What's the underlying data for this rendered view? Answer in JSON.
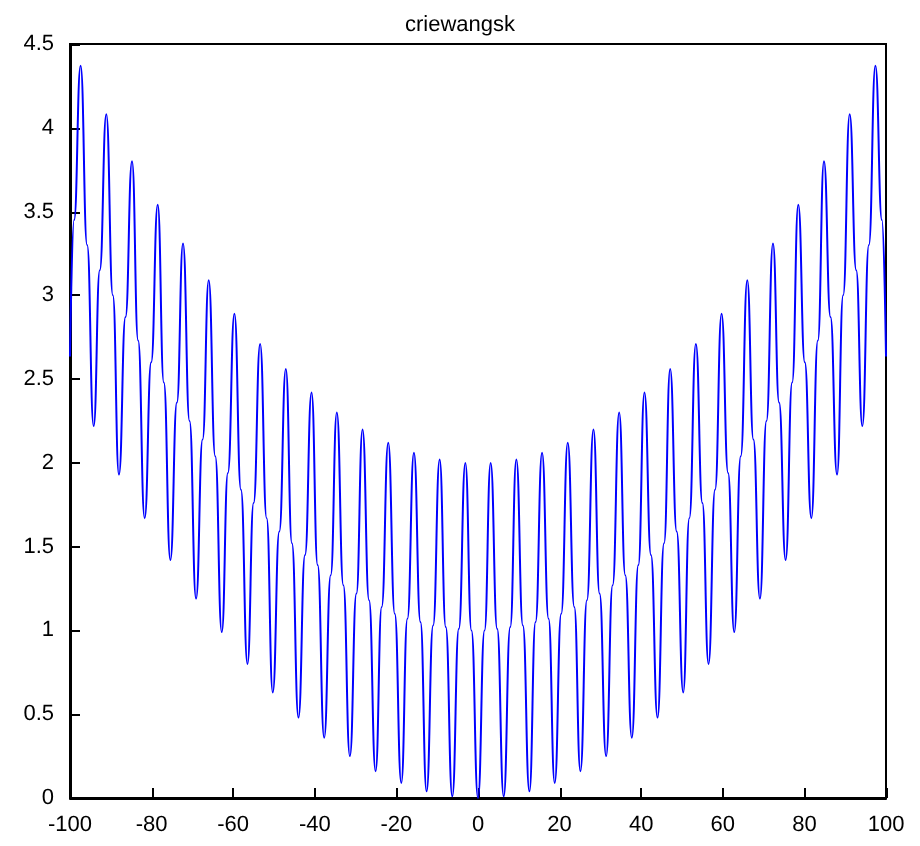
{
  "chart_data": {
    "type": "line",
    "title": "criewangsk",
    "x": [
      -100,
      -99.0,
      -97.4,
      -95.8,
      -94.2,
      -92.7,
      -91.1,
      -89.5,
      -88.0,
      -86.4,
      -84.8,
      -83.3,
      -81.7,
      -80.1,
      -78.5,
      -77.0,
      -75.4,
      -73.8,
      -72.3,
      -70.7,
      -69.1,
      -67.5,
      -66.0,
      -64.4,
      -62.8,
      -61.3,
      -59.7,
      -58.1,
      -56.5,
      -55.0,
      -53.4,
      -51.8,
      -50.3,
      -48.7,
      -47.1,
      -45.6,
      -44.0,
      -42.4,
      -40.8,
      -39.3,
      -37.7,
      -36.1,
      -34.6,
      -33.0,
      -31.4,
      -29.8,
      -28.3,
      -26.7,
      -25.1,
      -23.6,
      -22.0,
      -20.4,
      -18.8,
      -17.3,
      -15.7,
      -14.1,
      -12.6,
      -11.0,
      -9.4,
      -7.9,
      -6.3,
      -4.7,
      -3.1,
      -1.6,
      0,
      1.6,
      3.1,
      4.7,
      6.3,
      7.9,
      9.4,
      11.0,
      12.6,
      14.1,
      15.7,
      17.3,
      18.8,
      20.4,
      22.0,
      23.6,
      25.1,
      26.7,
      28.3,
      29.8,
      31.4,
      33.0,
      34.6,
      36.1,
      37.7,
      39.3,
      40.8,
      42.4,
      44.0,
      45.6,
      47.1,
      48.7,
      50.3,
      51.8,
      53.4,
      55.0,
      56.5,
      58.1,
      59.7,
      61.3,
      62.8,
      64.4,
      66.0,
      67.5,
      69.1,
      70.7,
      72.3,
      73.8,
      75.4,
      77.0,
      78.5,
      80.1,
      81.7,
      83.3,
      84.8,
      86.4,
      88.0,
      89.5,
      91.1,
      92.7,
      94.2,
      95.8,
      97.4,
      99.0,
      100
    ],
    "series": [
      {
        "color": "#0000ff",
        "values": [
          2.64,
          3.45,
          4.37,
          3.3,
          2.22,
          3.15,
          4.08,
          3.0,
          1.93,
          2.87,
          3.8,
          2.73,
          1.67,
          2.6,
          3.54,
          2.48,
          1.42,
          2.36,
          3.31,
          2.25,
          1.19,
          2.14,
          3.09,
          2.04,
          0.99,
          1.94,
          2.89,
          1.84,
          0.8,
          1.76,
          2.71,
          1.67,
          0.63,
          1.59,
          2.56,
          1.52,
          0.48,
          1.45,
          2.42,
          1.39,
          0.36,
          1.33,
          2.3,
          1.27,
          0.25,
          1.22,
          2.2,
          1.18,
          0.16,
          1.14,
          2.12,
          1.1,
          0.09,
          1.07,
          2.06,
          1.05,
          0.04,
          1.03,
          2.02,
          1.02,
          0.01,
          1.01,
          2.0,
          1.0,
          0,
          1.0,
          2.0,
          1.01,
          0.01,
          1.02,
          2.02,
          1.03,
          0.04,
          1.05,
          2.06,
          1.07,
          0.09,
          1.1,
          2.12,
          1.14,
          0.16,
          1.18,
          2.2,
          1.22,
          0.25,
          1.27,
          2.3,
          1.33,
          0.36,
          1.39,
          2.42,
          1.45,
          0.48,
          1.52,
          2.56,
          1.59,
          0.63,
          1.67,
          2.71,
          1.76,
          0.8,
          1.84,
          2.89,
          1.94,
          0.99,
          2.04,
          3.09,
          2.14,
          1.19,
          2.25,
          3.31,
          2.36,
          1.42,
          2.48,
          3.54,
          2.6,
          1.67,
          2.73,
          3.8,
          2.87,
          1.93,
          3.0,
          4.08,
          3.15,
          2.22,
          3.3,
          4.37,
          3.45,
          2.64
        ]
      }
    ],
    "xlim": [
      -100,
      100
    ],
    "xticks": [
      -100,
      -80,
      -60,
      -40,
      -20,
      0,
      20,
      40,
      60,
      80,
      100
    ],
    "ylim": [
      0,
      4.5
    ],
    "yticks": [
      0,
      0.5,
      1,
      1.5,
      2,
      2.5,
      3,
      3.5,
      4,
      4.5
    ],
    "grid": false,
    "marker": "none",
    "line_style": "solid"
  }
}
